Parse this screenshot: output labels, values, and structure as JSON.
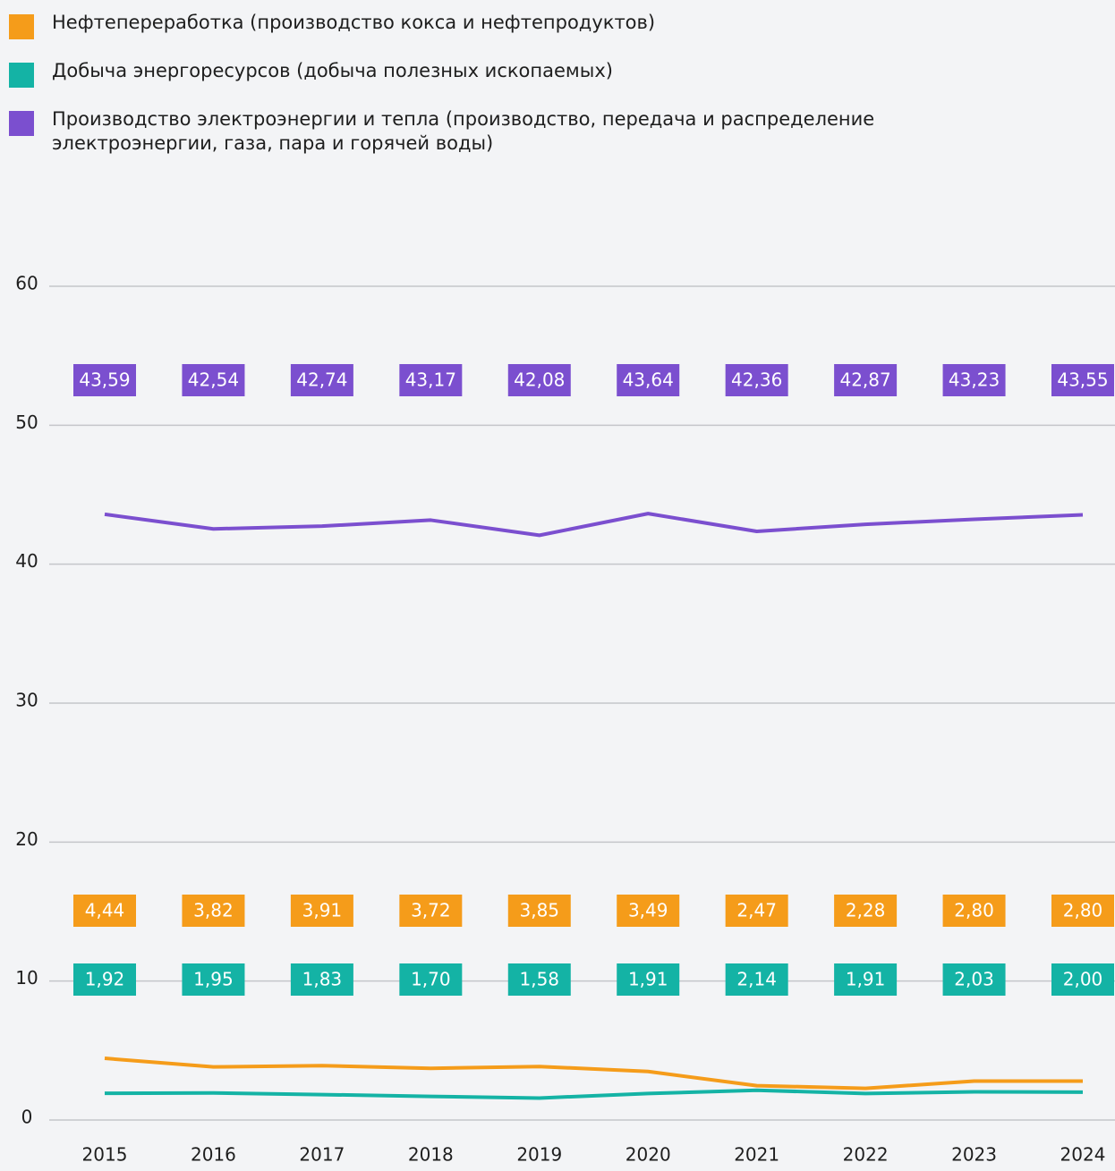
{
  "chart_data": {
    "type": "line",
    "categories": [
      "2015",
      "2016",
      "2017",
      "2018",
      "2019",
      "2020",
      "2021",
      "2022",
      "2023",
      "2024"
    ],
    "series": [
      {
        "name": "Нефтепереработка (производство кокса и нефтепродуктов)",
        "color": "#f59c1a",
        "values": [
          4.44,
          3.82,
          3.91,
          3.72,
          3.85,
          3.49,
          2.47,
          2.28,
          2.8,
          2.8
        ],
        "value_labels": [
          "4,44",
          "3,82",
          "3,91",
          "3,72",
          "3,85",
          "3,49",
          "2,47",
          "2,28",
          "2,80",
          "2,80"
        ]
      },
      {
        "name": "Добыча энергоресурсов (добыча полезных ископаемых)",
        "color": "#14b3a5",
        "values": [
          1.92,
          1.95,
          1.83,
          1.7,
          1.58,
          1.91,
          2.14,
          1.91,
          2.03,
          2.0
        ],
        "value_labels": [
          "1,92",
          "1,95",
          "1,83",
          "1,70",
          "1,58",
          "1,91",
          "2,14",
          "1,91",
          "2,03",
          "2,00"
        ]
      },
      {
        "name": "Производство электроэнергии и тепла (производство, передача и распределе­ние электроэнергии, газа, пара и горячей воды)",
        "color": "#7b4fcf",
        "values": [
          43.59,
          42.54,
          42.74,
          43.17,
          42.08,
          43.64,
          42.36,
          42.87,
          43.23,
          43.55
        ],
        "value_labels": [
          "43,59",
          "42,54",
          "42,74",
          "43,17",
          "42,08",
          "43,64",
          "42,36",
          "42,87",
          "43,23",
          "43,55"
        ]
      }
    ],
    "ylim": [
      0,
      60
    ],
    "yticks": [
      0,
      10,
      20,
      30,
      40,
      50,
      60
    ],
    "grid": true
  }
}
